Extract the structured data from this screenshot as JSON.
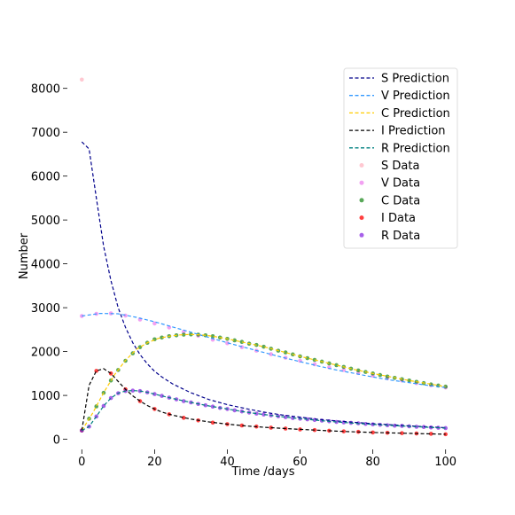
{
  "chart_data": {
    "type": "line",
    "xlabel": "Time /days",
    "ylabel": "Number",
    "xlim": [
      -3,
      103
    ],
    "ylim": [
      -150,
      8600
    ],
    "xticks": [
      0,
      20,
      40,
      60,
      80,
      100
    ],
    "yticks": [
      0,
      1000,
      2000,
      3000,
      4000,
      5000,
      6000,
      7000,
      8000
    ],
    "grid": false,
    "legend_position": "top-right",
    "series": [
      {
        "name": "S Prediction",
        "kind": "line",
        "color": "#00008b",
        "x": [
          0,
          2,
          4,
          6,
          8,
          10,
          12,
          14,
          16,
          18,
          20,
          22,
          25,
          30,
          35,
          40,
          45,
          50,
          55,
          60,
          65,
          70,
          75,
          80,
          85,
          90,
          95,
          100
        ],
        "y": [
          6780,
          6620,
          5500,
          4400,
          3620,
          3000,
          2550,
          2200,
          1930,
          1720,
          1550,
          1420,
          1260,
          1060,
          905,
          790,
          700,
          620,
          555,
          505,
          455,
          420,
          385,
          355,
          330,
          305,
          285,
          265
        ]
      },
      {
        "name": "V Prediction",
        "kind": "line",
        "color": "#3399ff",
        "x": [
          0,
          5,
          10,
          15,
          20,
          25,
          30,
          35,
          40,
          45,
          50,
          55,
          60,
          65,
          70,
          75,
          80,
          85,
          90,
          95,
          100
        ],
        "y": [
          2810,
          2870,
          2860,
          2780,
          2680,
          2560,
          2440,
          2320,
          2200,
          2090,
          1980,
          1870,
          1770,
          1670,
          1580,
          1500,
          1420,
          1350,
          1290,
          1230,
          1180
        ]
      },
      {
        "name": "C Prediction",
        "kind": "line",
        "color": "#ffcc00",
        "x": [
          0,
          3,
          6,
          9,
          12,
          15,
          18,
          21,
          24,
          27,
          30,
          33,
          36,
          40,
          45,
          50,
          55,
          60,
          65,
          70,
          75,
          80,
          85,
          90,
          95,
          100
        ],
        "y": [
          200,
          600,
          1060,
          1470,
          1800,
          2050,
          2200,
          2300,
          2350,
          2380,
          2390,
          2380,
          2350,
          2290,
          2200,
          2110,
          2000,
          1890,
          1790,
          1690,
          1590,
          1500,
          1420,
          1340,
          1270,
          1200
        ]
      },
      {
        "name": "I Prediction",
        "kind": "line",
        "color": "#000000",
        "x": [
          0,
          2,
          4,
          6,
          8,
          10,
          12,
          14,
          16,
          18,
          20,
          22,
          25,
          30,
          35,
          40,
          45,
          50,
          55,
          60,
          65,
          70,
          75,
          80,
          85,
          90,
          95,
          100
        ],
        "y": [
          200,
          1230,
          1560,
          1610,
          1500,
          1320,
          1140,
          990,
          870,
          770,
          690,
          620,
          550,
          460,
          395,
          345,
          305,
          275,
          250,
          225,
          205,
          185,
          170,
          155,
          145,
          135,
          125,
          115
        ]
      },
      {
        "name": "R Prediction",
        "kind": "line",
        "color": "#008080",
        "x": [
          0,
          2,
          4,
          6,
          8,
          10,
          12,
          14,
          16,
          18,
          20,
          22,
          25,
          30,
          35,
          40,
          45,
          50,
          55,
          60,
          65,
          70,
          75,
          80,
          85,
          90,
          95,
          100
        ],
        "y": [
          200,
          290,
          520,
          760,
          940,
          1050,
          1100,
          1110,
          1100,
          1070,
          1030,
          990,
          930,
          840,
          760,
          690,
          620,
          565,
          515,
          470,
          430,
          395,
          365,
          340,
          315,
          295,
          275,
          255
        ]
      },
      {
        "name": "S Data",
        "kind": "scatter",
        "color": "#ffb6c1",
        "x": [
          0
        ],
        "y": [
          8200
        ]
      },
      {
        "name": "V Data",
        "kind": "scatter",
        "color": "#ee82ee",
        "x": [
          0,
          4,
          8,
          12,
          16,
          20,
          24,
          28,
          32,
          36,
          40,
          44,
          48,
          52,
          56,
          60,
          64,
          68,
          72,
          76,
          80,
          84,
          88,
          92,
          96,
          100
        ],
        "y": [
          2810,
          2860,
          2870,
          2820,
          2730,
          2640,
          2550,
          2450,
          2360,
          2270,
          2190,
          2100,
          2020,
          1940,
          1860,
          1790,
          1710,
          1640,
          1580,
          1510,
          1450,
          1390,
          1340,
          1280,
          1230,
          1180
        ]
      },
      {
        "name": "C Data",
        "kind": "scatter",
        "color": "#228b22",
        "x": [
          0,
          2,
          4,
          6,
          8,
          10,
          12,
          14,
          16,
          18,
          20,
          22,
          24,
          26,
          28,
          30,
          32,
          34,
          36,
          38,
          40,
          42,
          44,
          46,
          48,
          50,
          52,
          54,
          56,
          58,
          60,
          62,
          64,
          66,
          68,
          70,
          72,
          74,
          76,
          78,
          80,
          82,
          84,
          86,
          88,
          90,
          92,
          94,
          96,
          98,
          100
        ],
        "y": [
          200,
          470,
          750,
          1060,
          1340,
          1580,
          1790,
          1960,
          2100,
          2200,
          2280,
          2320,
          2350,
          2370,
          2385,
          2390,
          2385,
          2370,
          2350,
          2320,
          2290,
          2255,
          2220,
          2180,
          2150,
          2110,
          2065,
          2020,
          1980,
          1935,
          1890,
          1850,
          1810,
          1770,
          1730,
          1690,
          1650,
          1610,
          1570,
          1535,
          1500,
          1465,
          1430,
          1400,
          1370,
          1340,
          1310,
          1280,
          1250,
          1225,
          1200
        ]
      },
      {
        "name": "I Data",
        "kind": "scatter",
        "color": "#ff0000",
        "x": [
          0,
          4,
          8,
          12,
          16,
          20,
          24,
          28,
          32,
          36,
          40,
          44,
          48,
          52,
          56,
          60,
          64,
          68,
          72,
          76,
          80,
          84,
          88,
          92,
          96,
          100
        ],
        "y": [
          200,
          1560,
          1500,
          1140,
          870,
          690,
          570,
          490,
          430,
          380,
          345,
          315,
          290,
          265,
          245,
          225,
          210,
          195,
          180,
          170,
          155,
          148,
          140,
          132,
          125,
          115
        ]
      },
      {
        "name": "R Data",
        "kind": "scatter",
        "color": "#8a2be2",
        "x": [
          0,
          2,
          4,
          6,
          8,
          10,
          12,
          14,
          16,
          18,
          20,
          22,
          24,
          26,
          28,
          30,
          32,
          34,
          36,
          38,
          40,
          42,
          44,
          46,
          48,
          50,
          52,
          54,
          56,
          58,
          60,
          62,
          64,
          66,
          68,
          70,
          72,
          74,
          76,
          78,
          80,
          82,
          84,
          86,
          88,
          90,
          92,
          94,
          96,
          98,
          100
        ],
        "y": [
          200,
          290,
          520,
          760,
          940,
          1050,
          1100,
          1110,
          1100,
          1070,
          1030,
          990,
          950,
          910,
          870,
          840,
          805,
          775,
          745,
          715,
          690,
          660,
          635,
          610,
          585,
          565,
          545,
          525,
          505,
          485,
          470,
          455,
          440,
          425,
          410,
          395,
          385,
          375,
          365,
          350,
          340,
          330,
          320,
          310,
          305,
          295,
          285,
          280,
          270,
          262,
          255
        ]
      }
    ]
  }
}
